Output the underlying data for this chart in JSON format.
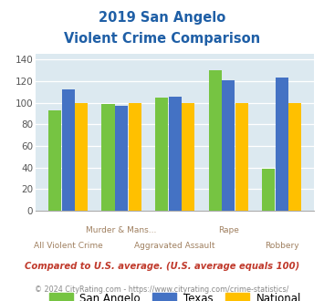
{
  "title_line1": "2019 San Angelo",
  "title_line2": "Violent Crime Comparison",
  "san_angelo": [
    93,
    99,
    105,
    130,
    39
  ],
  "texas": [
    112,
    97,
    106,
    121,
    123
  ],
  "national": [
    100,
    100,
    100,
    100,
    100
  ],
  "top_labels": [
    "",
    "Murder & Mans...",
    "",
    "Rape",
    ""
  ],
  "bottom_labels": [
    "All Violent Crime",
    "",
    "Aggravated Assault",
    "",
    "Robbery"
  ],
  "color_san_angelo": "#76c442",
  "color_texas": "#4472c4",
  "color_national": "#ffc000",
  "bg_color": "#dce9f0",
  "ylim": [
    0,
    145
  ],
  "yticks": [
    0,
    20,
    40,
    60,
    80,
    100,
    120,
    140
  ],
  "footnote1": "Compared to U.S. average. (U.S. average equals 100)",
  "footnote2": "© 2024 CityRating.com - https://www.cityrating.com/crime-statistics/",
  "title_color": "#1f5fa6",
  "footnote1_color": "#c0392b",
  "footnote2_color": "#888888",
  "label_color": "#a08060"
}
